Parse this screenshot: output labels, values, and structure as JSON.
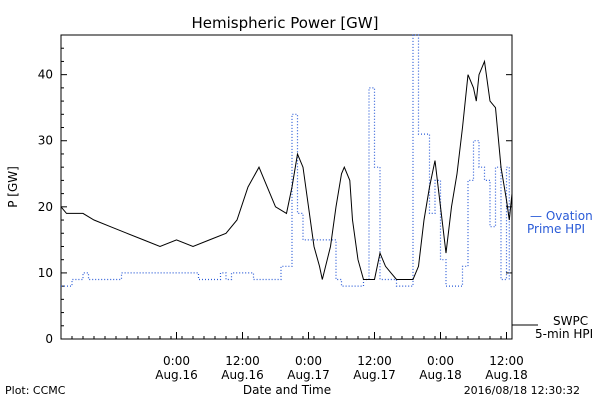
{
  "chart_data": {
    "type": "line",
    "title": "Hemispheric Power [GW]",
    "ylabel": "P [GW]",
    "xlabel": "Date and Time",
    "xlim": [
      "2016-08-15T03:00",
      "2016-08-18T13:00"
    ],
    "ylim": [
      0,
      46
    ],
    "yticks": [
      0,
      10,
      20,
      30,
      40
    ],
    "xticks": [
      {
        "t": "2016-08-16T00:00",
        "time": "0:00",
        "date": "Aug.16"
      },
      {
        "t": "2016-08-16T12:00",
        "time": "12:00",
        "date": "Aug.16"
      },
      {
        "t": "2016-08-17T00:00",
        "time": "0:00",
        "date": "Aug.17"
      },
      {
        "t": "2016-08-17T12:00",
        "time": "12:00",
        "date": "Aug.17"
      },
      {
        "t": "2016-08-18T00:00",
        "time": "0:00",
        "date": "Aug.18"
      },
      {
        "t": "2016-08-18T12:00",
        "time": "12:00",
        "date": "Aug.18"
      }
    ],
    "series": [
      {
        "name": "Ovation Prime HPI",
        "legend": [
          "— Ovation",
          "Prime HPI"
        ],
        "color": "#2a5bd7",
        "style": "dotted-step",
        "points": [
          [
            "2016-08-15T03:00",
            8
          ],
          [
            "2016-08-15T05:00",
            9
          ],
          [
            "2016-08-15T07:00",
            10
          ],
          [
            "2016-08-15T08:00",
            9
          ],
          [
            "2016-08-15T14:00",
            10
          ],
          [
            "2016-08-16T04:00",
            9
          ],
          [
            "2016-08-16T08:00",
            10
          ],
          [
            "2016-08-16T09:00",
            9
          ],
          [
            "2016-08-16T10:00",
            10
          ],
          [
            "2016-08-16T14:00",
            9
          ],
          [
            "2016-08-16T19:00",
            11
          ],
          [
            "2016-08-16T21:00",
            34
          ],
          [
            "2016-08-16T22:00",
            19
          ],
          [
            "2016-08-16T23:00",
            15
          ],
          [
            "2016-08-17T05:00",
            9
          ],
          [
            "2016-08-17T06:00",
            8
          ],
          [
            "2016-08-17T10:00",
            9
          ],
          [
            "2016-08-17T11:00",
            38
          ],
          [
            "2016-08-17T12:00",
            26
          ],
          [
            "2016-08-17T13:00",
            9
          ],
          [
            "2016-08-17T15:00",
            9
          ],
          [
            "2016-08-17T16:00",
            8
          ],
          [
            "2016-08-17T19:00",
            46
          ],
          [
            "2016-08-17T20:00",
            31
          ],
          [
            "2016-08-17T22:00",
            19
          ],
          [
            "2016-08-17T23:00",
            24
          ],
          [
            "2016-08-18T00:00",
            12
          ],
          [
            "2016-08-18T01:00",
            8
          ],
          [
            "2016-08-18T04:00",
            11
          ],
          [
            "2016-08-18T05:00",
            24
          ],
          [
            "2016-08-18T06:00",
            30
          ],
          [
            "2016-08-18T07:00",
            26
          ],
          [
            "2016-08-18T08:00",
            24
          ],
          [
            "2016-08-18T09:00",
            17
          ],
          [
            "2016-08-18T10:00",
            26
          ],
          [
            "2016-08-18T11:00",
            9
          ],
          [
            "2016-08-18T12:00",
            26
          ],
          [
            "2016-08-18T12:30",
            9
          ]
        ]
      },
      {
        "name": "SWPC 5-min HPI",
        "legend": [
          "SWPC",
          "5-min HPI"
        ],
        "color": "#000000",
        "style": "solid",
        "points": [
          [
            "2016-08-15T03:00",
            20
          ],
          [
            "2016-08-15T04:00",
            19
          ],
          [
            "2016-08-15T07:00",
            19
          ],
          [
            "2016-08-15T09:00",
            18
          ],
          [
            "2016-08-15T12:00",
            17
          ],
          [
            "2016-08-15T15:00",
            16
          ],
          [
            "2016-08-15T18:00",
            15
          ],
          [
            "2016-08-15T21:00",
            14
          ],
          [
            "2016-08-16T00:00",
            15
          ],
          [
            "2016-08-16T03:00",
            14
          ],
          [
            "2016-08-16T06:00",
            15
          ],
          [
            "2016-08-16T09:00",
            16
          ],
          [
            "2016-08-16T11:00",
            18
          ],
          [
            "2016-08-16T13:00",
            23
          ],
          [
            "2016-08-16T15:00",
            26
          ],
          [
            "2016-08-16T16:00",
            24
          ],
          [
            "2016-08-16T18:00",
            20
          ],
          [
            "2016-08-16T20:00",
            19
          ],
          [
            "2016-08-16T21:00",
            23
          ],
          [
            "2016-08-16T22:00",
            28
          ],
          [
            "2016-08-16T23:00",
            26
          ],
          [
            "2016-08-17T00:00",
            20
          ],
          [
            "2016-08-17T01:00",
            14
          ],
          [
            "2016-08-17T02:00",
            11
          ],
          [
            "2016-08-17T02:30",
            9
          ],
          [
            "2016-08-17T04:00",
            14
          ],
          [
            "2016-08-17T05:00",
            20
          ],
          [
            "2016-08-17T06:00",
            25
          ],
          [
            "2016-08-17T06:30",
            26
          ],
          [
            "2016-08-17T07:30",
            24
          ],
          [
            "2016-08-17T08:00",
            18
          ],
          [
            "2016-08-17T09:00",
            12
          ],
          [
            "2016-08-17T10:00",
            9
          ],
          [
            "2016-08-17T12:00",
            9
          ],
          [
            "2016-08-17T13:00",
            13
          ],
          [
            "2016-08-17T14:00",
            11
          ],
          [
            "2016-08-17T15:00",
            10
          ],
          [
            "2016-08-17T16:00",
            9
          ],
          [
            "2016-08-17T19:00",
            9
          ],
          [
            "2016-08-17T20:00",
            11
          ],
          [
            "2016-08-17T21:00",
            18
          ],
          [
            "2016-08-17T22:00",
            23
          ],
          [
            "2016-08-17T23:00",
            27
          ],
          [
            "2016-08-18T00:00",
            20
          ],
          [
            "2016-08-18T01:00",
            13
          ],
          [
            "2016-08-18T02:00",
            20
          ],
          [
            "2016-08-18T03:00",
            25
          ],
          [
            "2016-08-18T04:00",
            32
          ],
          [
            "2016-08-18T05:00",
            40
          ],
          [
            "2016-08-18T06:00",
            38
          ],
          [
            "2016-08-18T06:30",
            36
          ],
          [
            "2016-08-18T07:00",
            40
          ],
          [
            "2016-08-18T08:00",
            42
          ],
          [
            "2016-08-18T09:00",
            36
          ],
          [
            "2016-08-18T10:00",
            35
          ],
          [
            "2016-08-18T11:00",
            26
          ],
          [
            "2016-08-18T12:00",
            21
          ],
          [
            "2016-08-18T12:30",
            18
          ],
          [
            "2016-08-18T13:00",
            22
          ]
        ]
      }
    ],
    "grid": false,
    "legend_position": "right"
  },
  "footer": {
    "left": "Plot: CCMC",
    "right": "2016/08/18 12:30:32"
  }
}
